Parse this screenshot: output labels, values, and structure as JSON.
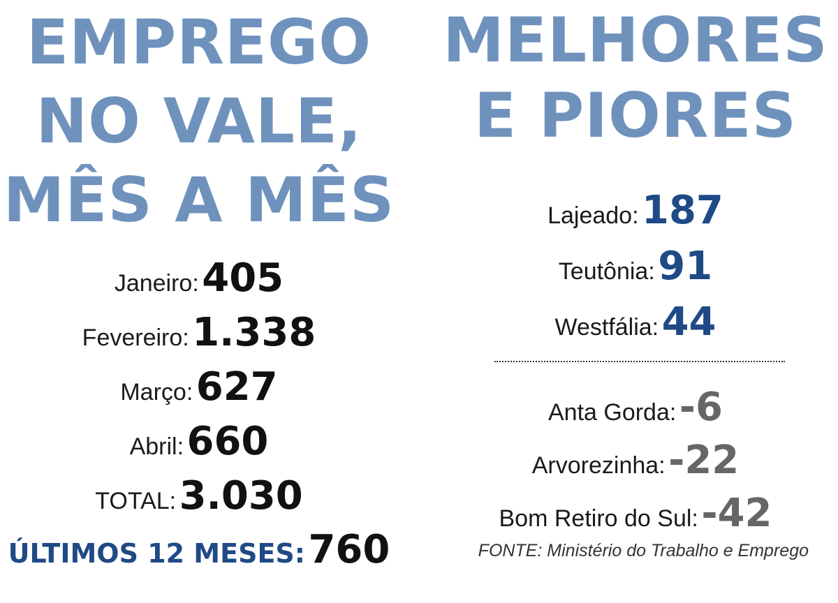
{
  "left": {
    "title_lines": [
      "EMPREGO",
      "NO VALE,",
      "MÊS A MÊS"
    ],
    "items": [
      {
        "label": "Janeiro:",
        "value": "405"
      },
      {
        "label": "Fevereiro:",
        "value": "1.338"
      },
      {
        "label": "Março:",
        "value": "627"
      },
      {
        "label": "Abril:",
        "value": "660"
      },
      {
        "label": "TOTAL:",
        "value": "3.030"
      }
    ],
    "last12": {
      "label": "ÚLTIMOS 12 MESES:",
      "value": "760"
    }
  },
  "right": {
    "title_lines": [
      "MELHORES",
      "E PIORES"
    ],
    "best": [
      {
        "label": "Lajeado:",
        "value": "187"
      },
      {
        "label": "Teutônia:",
        "value": "91"
      },
      {
        "label": "Westfália:",
        "value": "44"
      }
    ],
    "worst": [
      {
        "label": "Anta Gorda:",
        "value": "-6"
      },
      {
        "label": "Arvorezinha:",
        "value": "-22"
      },
      {
        "label": "Bom Retiro do Sul:",
        "value": "-42"
      }
    ],
    "source": "FONTE: Ministério do Trabalho e Emprego"
  },
  "colors": {
    "title": "#6f92bd",
    "accent": "#1f4a85",
    "negative": "#666666",
    "text": "#111111"
  }
}
